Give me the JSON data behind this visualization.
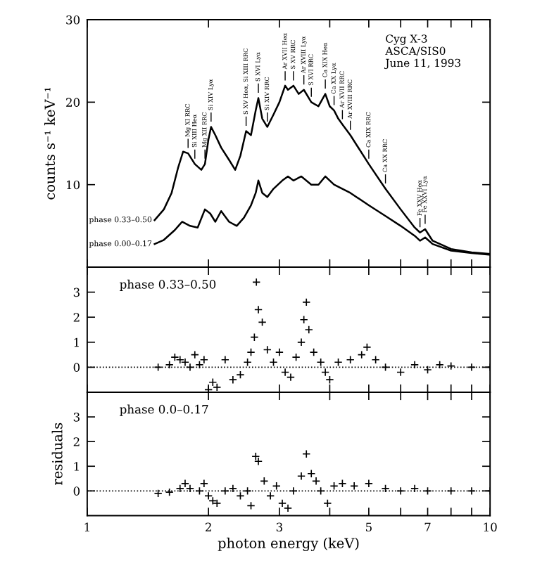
{
  "chart_data": [
    {
      "type": "line",
      "ylabel": "counts s⁻¹ keV⁻¹",
      "xlim": [
        1,
        10
      ],
      "ylim": [
        0,
        30
      ],
      "log": "x",
      "tick_labels": "y",
      "marker": "none",
      "line_style": "solid",
      "grid": false,
      "xticks": [
        {
          "value": 1,
          "label": null
        },
        {
          "value": 2,
          "label": null
        },
        {
          "value": 3,
          "label": null
        },
        {
          "value": 4,
          "label": null
        },
        {
          "value": 5,
          "label": null
        },
        {
          "value": 6,
          "label": null
        },
        {
          "value": 7,
          "label": null
        },
        {
          "value": 8,
          "label": null
        },
        {
          "value": 9,
          "label": null
        },
        {
          "value": 10,
          "label": null
        }
      ],
      "yticks": [
        {
          "value": 0,
          "label": null
        },
        10,
        20,
        30
      ],
      "series": [
        {
          "name": "phase 0.33–0.50",
          "color": "#000000",
          "x": [
            1.47,
            1.55,
            1.62,
            1.68,
            1.73,
            1.78,
            1.85,
            1.92,
            1.96,
            2.0,
            2.03,
            2.08,
            2.15,
            2.25,
            2.33,
            2.4,
            2.48,
            2.55,
            2.62,
            2.66,
            2.72,
            2.8,
            2.9,
            3.0,
            3.1,
            3.15,
            3.25,
            3.35,
            3.45,
            3.6,
            3.75,
            3.9,
            4.0,
            4.1,
            4.2,
            4.3,
            4.5,
            5.0,
            5.5,
            6.0,
            6.5,
            6.7,
            6.9,
            7.2,
            8,
            9,
            10
          ],
          "values": [
            5.7,
            7,
            9,
            12,
            14,
            13.8,
            12.5,
            11.8,
            12.5,
            15.5,
            17,
            16,
            14.5,
            13,
            11.8,
            13.5,
            16.5,
            16,
            19,
            20.5,
            18,
            17,
            18.5,
            20,
            22,
            21.5,
            22,
            21,
            21.5,
            20,
            19.5,
            21,
            19.5,
            19,
            18,
            17.3,
            16,
            12.5,
            9.5,
            7,
            4.8,
            4.2,
            4.6,
            3.2,
            2.2,
            1.8,
            1.6
          ]
        },
        {
          "name": "phase 0.00–0.17",
          "color": "#000000",
          "x": [
            1.47,
            1.55,
            1.65,
            1.72,
            1.8,
            1.88,
            1.96,
            2.02,
            2.08,
            2.15,
            2.25,
            2.35,
            2.45,
            2.55,
            2.62,
            2.66,
            2.72,
            2.8,
            2.9,
            3.05,
            3.15,
            3.25,
            3.4,
            3.6,
            3.75,
            3.9,
            4.1,
            4.5,
            5,
            5.5,
            6,
            6.5,
            6.7,
            6.9,
            7.2,
            8,
            9,
            10
          ],
          "values": [
            2.8,
            3.3,
            4.5,
            5.5,
            5,
            4.8,
            7,
            6.5,
            5.5,
            6.8,
            5.5,
            5,
            6,
            7.5,
            9,
            10.5,
            9,
            8.5,
            9.5,
            10.5,
            11,
            10.5,
            11,
            10,
            10,
            11,
            10,
            9,
            7.5,
            6.2,
            5,
            3.8,
            3.2,
            3.6,
            2.8,
            2,
            1.7,
            1.5
          ]
        }
      ],
      "annotations": [
        "Cyg X-3\nASCA/SIS0\nJune 11, 1993",
        {
          "text": "Mg XI RRC",
          "x": 1.78,
          "y": 13.8
        },
        {
          "text": "Si XIII Heα",
          "x": 1.85,
          "y": 12.5
        },
        {
          "text": "Mg XII RRC",
          "x": 1.96,
          "y": 12.5
        },
        {
          "text": "Si XIV Lyα",
          "x": 2.03,
          "y": 17
        },
        {
          "text": "S XV Heα, Si XIII RRC",
          "x": 2.48,
          "y": 16.5
        },
        {
          "text": "S XVI Lyα",
          "x": 2.66,
          "y": 20.5
        },
        {
          "text": "Si XIV RRC",
          "x": 2.8,
          "y": 17
        },
        {
          "text": "Ar XVII Heα",
          "x": 3.1,
          "y": 22
        },
        {
          "text": "S XV RRC",
          "x": 3.25,
          "y": 22
        },
        {
          "text": "Ar XVIII Lyα",
          "x": 3.45,
          "y": 21.5
        },
        {
          "text": "S XVI RRC",
          "x": 3.6,
          "y": 20
        },
        {
          "text": "Ca XIX Heα",
          "x": 3.9,
          "y": 21
        },
        {
          "text": "Ca XX Lyα",
          "x": 4.1,
          "y": 19
        },
        {
          "text": "Ar XVII RRC",
          "x": 4.3,
          "y": 17.3
        },
        {
          "text": "Ar XVIII RRC",
          "x": 4.5,
          "y": 16
        },
        {
          "text": "Ca XIX RRC",
          "x": 5.0,
          "y": 12.5
        },
        {
          "text": "Ca XX RRC",
          "x": 5.5,
          "y": 9.5
        },
        {
          "text": "Fe XXV Heα",
          "x": 6.7,
          "y": 4.2
        },
        {
          "text": "Fe XXVI Lyα",
          "x": 6.9,
          "y": 4.6
        }
      ]
    },
    {
      "type": "scatter",
      "title": "phase 0.33–0.50",
      "xlim": [
        1,
        10
      ],
      "ylim": [
        -1,
        4
      ],
      "log": "x",
      "tick_labels": "y",
      "marker": "cross",
      "grid": false,
      "xticks": [
        {
          "value": 1,
          "label": null
        },
        {
          "value": 2,
          "label": null
        },
        {
          "value": 3,
          "label": null
        },
        {
          "value": 4,
          "label": null
        },
        {
          "value": 5,
          "label": null
        },
        {
          "value": 6,
          "label": null
        },
        {
          "value": 7,
          "label": null
        },
        {
          "value": 8,
          "label": null
        },
        {
          "value": 9,
          "label": null
        },
        {
          "value": 10,
          "label": null
        }
      ],
      "yticks": [
        0,
        1,
        2,
        3
      ],
      "ref_lines": [
        {
          "axis": "y",
          "value": 0,
          "color": "#000000",
          "line_style": "dotted"
        }
      ],
      "series": [
        {
          "color": "#000000",
          "x": [
            1.5,
            1.6,
            1.65,
            1.7,
            1.75,
            1.8,
            1.85,
            1.9,
            1.95,
            2.0,
            2.05,
            2.1,
            2.2,
            2.3,
            2.4,
            2.5,
            2.55,
            2.6,
            2.63,
            2.66,
            2.72,
            2.8,
            2.9,
            3.0,
            3.1,
            3.2,
            3.3,
            3.4,
            3.45,
            3.5,
            3.55,
            3.65,
            3.8,
            3.9,
            4.0,
            4.2,
            4.5,
            4.8,
            4.95,
            5.2,
            5.5,
            6.0,
            6.5,
            7.0,
            7.5,
            8,
            9,
            10
          ],
          "values": [
            0.0,
            0.1,
            0.4,
            0.3,
            0.2,
            0.0,
            0.5,
            0.1,
            0.3,
            -0.9,
            -0.6,
            -0.8,
            0.3,
            -0.5,
            -0.3,
            0.2,
            0.6,
            1.2,
            3.4,
            2.3,
            1.8,
            0.7,
            0.2,
            0.6,
            -0.2,
            -0.4,
            0.4,
            1.0,
            1.9,
            2.6,
            1.5,
            0.6,
            0.2,
            -0.2,
            -0.5,
            0.2,
            0.3,
            0.5,
            0.8,
            0.3,
            0.0,
            -0.2,
            0.1,
            -0.1,
            0.1,
            0.05,
            0.0,
            0.0
          ]
        }
      ]
    },
    {
      "type": "scatter",
      "title": "phase 0.0–0.17",
      "xlabel": "photon energy (keV)",
      "ylabel": "residuals",
      "xlim": [
        1,
        10
      ],
      "ylim": [
        -1,
        4
      ],
      "log": "x",
      "marker": "cross",
      "grid": false,
      "xticks": [
        1,
        2,
        3,
        {
          "value": 4,
          "label": null
        },
        5,
        {
          "value": 6,
          "label": null
        },
        7,
        {
          "value": 8,
          "label": null
        },
        {
          "value": 9,
          "label": null
        },
        10
      ],
      "yticks": [
        0,
        1,
        2,
        3
      ],
      "ref_lines": [
        {
          "axis": "y",
          "value": 0,
          "color": "#000000",
          "line_style": "dotted"
        }
      ],
      "series": [
        {
          "color": "#000000",
          "x": [
            1.5,
            1.6,
            1.7,
            1.75,
            1.8,
            1.9,
            1.95,
            2.0,
            2.05,
            2.1,
            2.2,
            2.3,
            2.4,
            2.5,
            2.55,
            2.62,
            2.66,
            2.75,
            2.85,
            2.95,
            3.05,
            3.15,
            3.25,
            3.4,
            3.5,
            3.6,
            3.7,
            3.8,
            3.95,
            4.1,
            4.3,
            4.6,
            5.0,
            5.5,
            6,
            6.5,
            7,
            8,
            9,
            10
          ],
          "values": [
            -0.1,
            -0.05,
            0.1,
            0.3,
            0.1,
            0.0,
            0.3,
            -0.2,
            -0.4,
            -0.5,
            0.0,
            0.1,
            -0.2,
            0.0,
            -0.6,
            1.4,
            1.2,
            0.4,
            -0.2,
            0.2,
            -0.5,
            -0.7,
            0.0,
            0.6,
            1.5,
            0.7,
            0.4,
            0.0,
            -0.5,
            0.2,
            0.3,
            0.2,
            0.3,
            0.1,
            0.0,
            0.1,
            0.0,
            0.0,
            0.0,
            0.0
          ]
        }
      ]
    }
  ]
}
